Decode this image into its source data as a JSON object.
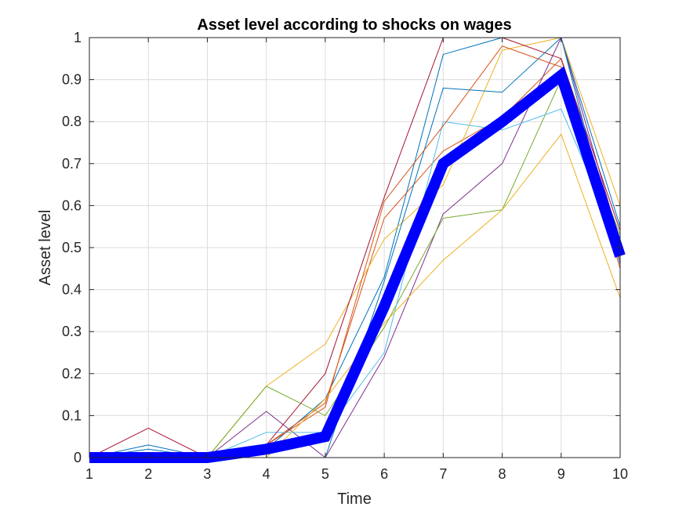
{
  "chart_data": {
    "type": "line",
    "title": "Asset level according to shocks on wages",
    "xlabel": "Time",
    "ylabel": "Asset level",
    "xlim": [
      1,
      10
    ],
    "ylim": [
      0,
      1
    ],
    "xticks": [
      "1",
      "2",
      "3",
      "4",
      "5",
      "6",
      "7",
      "8",
      "9",
      "10"
    ],
    "yticks": [
      "0",
      "0.1",
      "0.2",
      "0.3",
      "0.4",
      "0.5",
      "0.6",
      "0.7",
      "0.8",
      "0.9",
      "1"
    ],
    "grid": true,
    "x": [
      1,
      2,
      3,
      4,
      5,
      6,
      7,
      8,
      9,
      10
    ],
    "series": [
      {
        "color": "#0072BD",
        "values": [
          0,
          0.03,
          0,
          0.02,
          0.14,
          0.43,
          0.96,
          1.0,
          1.0,
          0.55
        ]
      },
      {
        "color": "#D95319",
        "values": [
          0,
          0.01,
          0,
          0.03,
          0.13,
          0.57,
          0.73,
          0.81,
          0.95,
          0.47
        ]
      },
      {
        "color": "#EDB120",
        "values": [
          0,
          0.0,
          0,
          0.17,
          0.27,
          0.52,
          0.65,
          0.97,
          1.0,
          0.6
        ]
      },
      {
        "color": "#7E2F8E",
        "values": [
          0,
          0.0,
          0,
          0.11,
          0.0,
          0.24,
          0.58,
          0.7,
          1.0,
          0.51
        ]
      },
      {
        "color": "#77AC30",
        "values": [
          0,
          0.01,
          0,
          0.17,
          0.1,
          0.31,
          0.57,
          0.59,
          0.9,
          0.53
        ]
      },
      {
        "color": "#4DBEEE",
        "values": [
          0,
          0.01,
          0,
          0.06,
          0.06,
          0.25,
          0.8,
          0.78,
          0.83,
          0.5
        ]
      },
      {
        "color": "#A2142F",
        "values": [
          0,
          0.07,
          0,
          0.03,
          0.2,
          0.62,
          1.0,
          1.0,
          0.95,
          0.54
        ]
      },
      {
        "color": "#0072BD",
        "values": [
          0,
          0.02,
          0,
          0.0,
          0.0,
          0.42,
          0.88,
          0.87,
          1.0,
          0.46
        ]
      },
      {
        "color": "#D95319",
        "values": [
          0,
          0.0,
          0,
          0.03,
          0.12,
          0.61,
          0.79,
          0.98,
          0.93,
          0.45
        ]
      },
      {
        "color": "#EDB120",
        "values": [
          0,
          0.0,
          0,
          0.0,
          0.14,
          0.32,
          0.47,
          0.59,
          0.77,
          0.38
        ]
      },
      {
        "color": "#0000FF",
        "emphasis": true,
        "values": [
          0,
          0,
          0,
          0.02,
          0.05,
          0.36,
          0.7,
          0.8,
          0.91,
          0.48
        ]
      }
    ]
  }
}
